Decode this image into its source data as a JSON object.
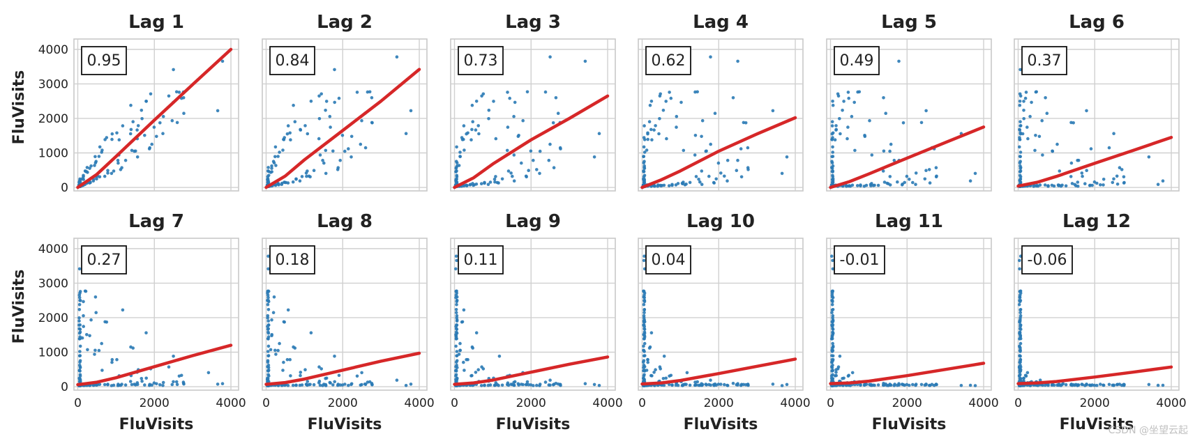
{
  "figure": {
    "xlabel": "FluVisits",
    "ylabel": "FluVisits",
    "watermark": "CSDN @坐望云起"
  },
  "colors": {
    "scatter": "#2a7ab5",
    "fit": "#d62728",
    "grid": "#d0d0d0",
    "frame": "#c8c8c8",
    "text": "#222222"
  },
  "chart_data": {
    "type": "scatter",
    "subplots": 12,
    "layout": "2 rows x 6 columns",
    "x_axis": {
      "label": "FluVisits",
      "range": [
        -100,
        4200
      ],
      "ticks": [
        0,
        2000,
        4000
      ]
    },
    "y_axis": {
      "label": "FluVisits",
      "range": [
        -100,
        4300
      ],
      "ticks": [
        0,
        1000,
        2000,
        3000,
        4000
      ]
    },
    "panels": [
      {
        "title": "Lag 1",
        "corr": "0.95",
        "fit": [
          [
            0,
            0
          ],
          [
            500,
            380
          ],
          [
            1000,
            900
          ],
          [
            2000,
            1950
          ],
          [
            3000,
            2980
          ],
          [
            4000,
            4000
          ]
        ]
      },
      {
        "title": "Lag 2",
        "corr": "0.84",
        "fit": [
          [
            0,
            0
          ],
          [
            500,
            330
          ],
          [
            1000,
            800
          ],
          [
            2000,
            1650
          ],
          [
            3000,
            2500
          ],
          [
            4000,
            3420
          ]
        ]
      },
      {
        "title": "Lag 3",
        "corr": "0.73",
        "fit": [
          [
            0,
            0
          ],
          [
            500,
            280
          ],
          [
            1000,
            680
          ],
          [
            2000,
            1380
          ],
          [
            3000,
            2000
          ],
          [
            4000,
            2650
          ]
        ]
      },
      {
        "title": "Lag 4",
        "corr": "0.62",
        "fit": [
          [
            0,
            0
          ],
          [
            500,
            220
          ],
          [
            1000,
            480
          ],
          [
            2000,
            1050
          ],
          [
            3000,
            1550
          ],
          [
            4000,
            2020
          ]
        ]
      },
      {
        "title": "Lag 5",
        "corr": "0.49",
        "fit": [
          [
            0,
            0
          ],
          [
            500,
            170
          ],
          [
            1000,
            390
          ],
          [
            2000,
            850
          ],
          [
            3000,
            1300
          ],
          [
            4000,
            1750
          ]
        ]
      },
      {
        "title": "Lag 6",
        "corr": "0.37",
        "fit": [
          [
            0,
            40
          ],
          [
            500,
            150
          ],
          [
            1000,
            320
          ],
          [
            2000,
            700
          ],
          [
            3000,
            1070
          ],
          [
            4000,
            1450
          ]
        ]
      },
      {
        "title": "Lag 7",
        "corr": "0.27",
        "fit": [
          [
            0,
            60
          ],
          [
            500,
            130
          ],
          [
            1000,
            260
          ],
          [
            2000,
            580
          ],
          [
            3000,
            900
          ],
          [
            4000,
            1200
          ]
        ]
      },
      {
        "title": "Lag 8",
        "corr": "0.18",
        "fit": [
          [
            0,
            70
          ],
          [
            500,
            120
          ],
          [
            1000,
            220
          ],
          [
            2000,
            480
          ],
          [
            3000,
            740
          ],
          [
            4000,
            970
          ]
        ]
      },
      {
        "title": "Lag 9",
        "corr": "0.11",
        "fit": [
          [
            0,
            70
          ],
          [
            500,
            110
          ],
          [
            1000,
            190
          ],
          [
            2000,
            420
          ],
          [
            3000,
            650
          ],
          [
            4000,
            860
          ]
        ]
      },
      {
        "title": "Lag 10",
        "corr": "0.04",
        "fit": [
          [
            0,
            80
          ],
          [
            500,
            110
          ],
          [
            1000,
            180
          ],
          [
            2000,
            380
          ],
          [
            3000,
            590
          ],
          [
            4000,
            800
          ]
        ]
      },
      {
        "title": "Lag 11",
        "corr": "-0.01",
        "fit": [
          [
            0,
            90
          ],
          [
            500,
            110
          ],
          [
            1000,
            160
          ],
          [
            2000,
            320
          ],
          [
            3000,
            500
          ],
          [
            4000,
            680
          ]
        ]
      },
      {
        "title": "Lag 12",
        "corr": "-0.06",
        "fit": [
          [
            0,
            90
          ],
          [
            500,
            110
          ],
          [
            1000,
            150
          ],
          [
            2000,
            280
          ],
          [
            3000,
            420
          ],
          [
            4000,
            570
          ]
        ]
      }
    ]
  }
}
